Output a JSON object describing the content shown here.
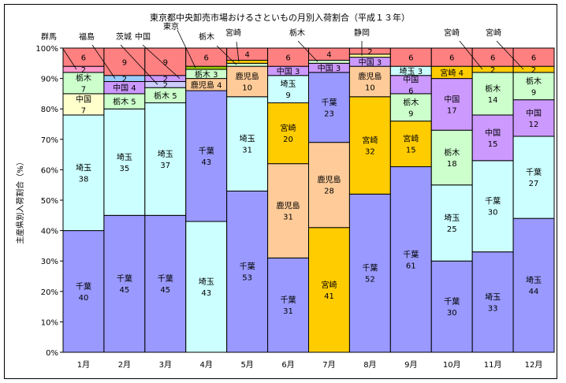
{
  "chart_data": {
    "type": "bar",
    "stacked": "percent",
    "title": "東京都中央卸売市場おけるさといもの月別入荷割合（平成１３年）",
    "xlabel": "",
    "ylabel": "主産県別入荷割合（%）",
    "ylim": [
      0,
      100
    ],
    "yticks": [
      "0%",
      "10%",
      "20%",
      "30%",
      "40%",
      "50%",
      "60%",
      "70%",
      "80%",
      "90%",
      "100%"
    ],
    "grid": false,
    "categories": [
      "1月",
      "2月",
      "3月",
      "4月",
      "5月",
      "6月",
      "7月",
      "8月",
      "9月",
      "10月",
      "11月",
      "12月"
    ],
    "bars": [
      {
        "month": "1月",
        "segments": [
          {
            "name": "千葉",
            "value": 40,
            "color": "#9999FF"
          },
          {
            "name": "埼玉",
            "value": 38,
            "color": "#CCFFFF"
          },
          {
            "name": "中国",
            "value": 7,
            "color": "#FFFFCC"
          },
          {
            "name": "栃木",
            "value": 7,
            "color": "#CCFFCC"
          },
          {
            "name": "群馬",
            "value": 2,
            "color": "#FF99CC",
            "callout": true
          },
          {
            "name": "",
            "value": 6,
            "color": "#FF8080"
          }
        ]
      },
      {
        "month": "2月",
        "segments": [
          {
            "name": "千葉",
            "value": 45,
            "color": "#9999FF"
          },
          {
            "name": "埼玉",
            "value": 35,
            "color": "#CCFFFF"
          },
          {
            "name": "栃木",
            "value": 5,
            "color": "#CCFFCC"
          },
          {
            "name": "中国",
            "value": 4,
            "color": "#CC99FF"
          },
          {
            "name": "福島",
            "value": 2,
            "color": "#99CCFF",
            "callout": true
          },
          {
            "name": "",
            "value": 9,
            "color": "#FF8080"
          }
        ]
      },
      {
        "month": "3月",
        "segments": [
          {
            "name": "千葉",
            "value": 45,
            "color": "#9999FF"
          },
          {
            "name": "埼玉",
            "value": 37,
            "color": "#CCFFFF"
          },
          {
            "name": "栃木",
            "value": 5,
            "color": "#CCFFCC"
          },
          {
            "name": "茨城",
            "value": 2,
            "color": "#CCCCFF",
            "callout": true
          },
          {
            "name": "中国",
            "value": 2,
            "color": "#CC99FF",
            "callout": true
          },
          {
            "name": "",
            "value": 9,
            "color": "#FF8080"
          }
        ]
      },
      {
        "month": "4月",
        "segments": [
          {
            "name": "埼玉",
            "value": 43,
            "color": "#CCFFFF"
          },
          {
            "name": "千葉",
            "value": 43,
            "color": "#9999FF"
          },
          {
            "name": "鹿児島",
            "value": 4,
            "color": "#FFCC99"
          },
          {
            "name": "栃木",
            "value": 3,
            "color": "#CCFFCC"
          },
          {
            "name": "東京",
            "value": 1,
            "color": "#99CC00",
            "callout": true
          },
          {
            "name": "",
            "value": 6,
            "color": "#FF8080"
          }
        ]
      },
      {
        "month": "5月",
        "segments": [
          {
            "name": "千葉",
            "value": 53,
            "color": "#9999FF"
          },
          {
            "name": "埼玉",
            "value": 31,
            "color": "#CCFFFF"
          },
          {
            "name": "鹿児島",
            "value": 10,
            "color": "#FFCC99"
          },
          {
            "name": "栃木",
            "value": 1,
            "color": "#CCFFCC",
            "callout": true
          },
          {
            "name": "宮崎",
            "value": 1,
            "color": "#FFCC00",
            "callout": true
          },
          {
            "name": "",
            "value": 4,
            "color": "#FF8080"
          }
        ]
      },
      {
        "month": "6月",
        "segments": [
          {
            "name": "千葉",
            "value": 31,
            "color": "#9999FF"
          },
          {
            "name": "鹿児島",
            "value": 31,
            "color": "#FFCC99"
          },
          {
            "name": "宮崎",
            "value": 20,
            "color": "#FFCC00"
          },
          {
            "name": "埼玉",
            "value": 9,
            "color": "#CCFFFF"
          },
          {
            "name": "中国",
            "value": 3,
            "color": "#CC99FF"
          },
          {
            "name": "",
            "value": 6,
            "color": "#FF8080"
          }
        ]
      },
      {
        "month": "7月",
        "segments": [
          {
            "name": "宮崎",
            "value": 41,
            "color": "#FFCC00"
          },
          {
            "name": "鹿児島",
            "value": 28,
            "color": "#FFCC99"
          },
          {
            "name": "千葉",
            "value": 23,
            "color": "#9999FF"
          },
          {
            "name": "中国",
            "value": 3,
            "color": "#CC99FF"
          },
          {
            "name": "栃木",
            "value": 1,
            "color": "#CCFFCC",
            "callout": true
          },
          {
            "name": "",
            "value": 4,
            "color": "#FF8080"
          }
        ]
      },
      {
        "month": "8月",
        "segments": [
          {
            "name": "千葉",
            "value": 52,
            "color": "#9999FF"
          },
          {
            "name": "宮崎",
            "value": 32,
            "color": "#FFCC00"
          },
          {
            "name": "鹿児島",
            "value": 10,
            "color": "#FFCC99"
          },
          {
            "name": "中国",
            "value": 3,
            "color": "#CC99FF"
          },
          {
            "name": "静岡",
            "value": 1,
            "color": "#FFFF99",
            "callout": true
          },
          {
            "name": "",
            "value": 2,
            "color": "#FF8080"
          }
        ]
      },
      {
        "month": "9月",
        "segments": [
          {
            "name": "千葉",
            "value": 61,
            "color": "#9999FF"
          },
          {
            "name": "宮崎",
            "value": 15,
            "color": "#FFCC00"
          },
          {
            "name": "栃木",
            "value": 9,
            "color": "#CCFFCC"
          },
          {
            "name": "中国",
            "value": 6,
            "color": "#CC99FF"
          },
          {
            "name": "埼玉",
            "value": 3,
            "color": "#CCFFFF"
          },
          {
            "name": "",
            "value": 6,
            "color": "#FF8080"
          }
        ]
      },
      {
        "month": "10月",
        "segments": [
          {
            "name": "千葉",
            "value": 30,
            "color": "#9999FF"
          },
          {
            "name": "埼玉",
            "value": 25,
            "color": "#CCFFFF"
          },
          {
            "name": "栃木",
            "value": 18,
            "color": "#CCFFCC"
          },
          {
            "name": "中国",
            "value": 17,
            "color": "#CC99FF"
          },
          {
            "name": "宮崎",
            "value": 4,
            "color": "#FFCC00"
          },
          {
            "name": "",
            "value": 6,
            "color": "#FF8080"
          }
        ]
      },
      {
        "month": "11月",
        "segments": [
          {
            "name": "埼玉",
            "value": 33,
            "color": "#9999FF"
          },
          {
            "name": "千葉",
            "value": 30,
            "color": "#CCFFFF"
          },
          {
            "name": "中国",
            "value": 15,
            "color": "#CC99FF"
          },
          {
            "name": "栃木",
            "value": 14,
            "color": "#CCFFCC"
          },
          {
            "name": "宮崎",
            "value": 2,
            "color": "#FFCC00",
            "callout": true
          },
          {
            "name": "",
            "value": 6,
            "color": "#FF8080"
          }
        ]
      },
      {
        "month": "12月",
        "segments": [
          {
            "name": "埼玉",
            "value": 44,
            "color": "#9999FF"
          },
          {
            "name": "千葉",
            "value": 27,
            "color": "#CCFFFF"
          },
          {
            "name": "中国",
            "value": 12,
            "color": "#CC99FF"
          },
          {
            "name": "栃木",
            "value": 9,
            "color": "#CCFFCC"
          },
          {
            "name": "宮崎",
            "value": 2,
            "color": "#FFCC00",
            "callout": true
          },
          {
            "name": "",
            "value": 6,
            "color": "#FF8080"
          }
        ]
      }
    ]
  }
}
